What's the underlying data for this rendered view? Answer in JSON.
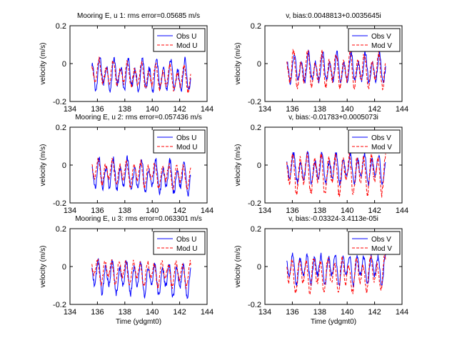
{
  "figure": {
    "background": "#ffffff"
  },
  "chart_data": [
    {
      "type": "line",
      "title": "Mooring E, u 1: rms error=0.05685 m/s",
      "xlabel": "",
      "ylabel": "velocity (m/s)",
      "xlim": [
        134,
        144
      ],
      "ylim": [
        -0.2,
        0.2
      ],
      "xticks": [
        "134",
        "136",
        "138",
        "140",
        "142",
        "144"
      ],
      "yticks": [
        "-0.2",
        "0",
        "0.2"
      ],
      "grid": false,
      "legend_position": "top-right",
      "x_start": 135.6,
      "x_end": 142.8,
      "series": [
        {
          "name": "Obs U",
          "color": "#0000ff",
          "dash": "solid",
          "mean": -0.055,
          "amplitude": 0.065,
          "trend": -0.02
        },
        {
          "name": "Mod U",
          "color": "#ff0000",
          "dash": "dashed",
          "mean": -0.045,
          "amplitude": 0.05,
          "trend": -0.04
        }
      ]
    },
    {
      "type": "line",
      "title": "v, bias:0.0048813+0.0035645i",
      "xlabel": "",
      "ylabel": "velocity (m/s)",
      "xlim": [
        134,
        144
      ],
      "ylim": [
        -0.2,
        0.2
      ],
      "xticks": [
        "134",
        "136",
        "138",
        "140",
        "142",
        "144"
      ],
      "yticks": [
        "-0.2",
        "0",
        "0.2"
      ],
      "grid": false,
      "legend_position": "top-right",
      "x_start": 135.6,
      "x_end": 142.8,
      "series": [
        {
          "name": "Obs V",
          "color": "#0000ff",
          "dash": "solid",
          "mean": -0.03,
          "amplitude": 0.06,
          "trend": 0
        },
        {
          "name": "Mod V",
          "color": "#ff0000",
          "dash": "dashed",
          "mean": -0.035,
          "amplitude": 0.07,
          "trend": 0
        }
      ]
    },
    {
      "type": "line",
      "title": "Mooring E, u 2: rms error=0.057436 m/s",
      "xlabel": "",
      "ylabel": "velocity (m/s)",
      "xlim": [
        134,
        144
      ],
      "ylim": [
        -0.2,
        0.2
      ],
      "xticks": [
        "134",
        "136",
        "138",
        "140",
        "142",
        "144"
      ],
      "yticks": [
        "-0.2",
        "0",
        "0.2"
      ],
      "grid": false,
      "legend_position": "top-right",
      "x_start": 135.6,
      "x_end": 142.8,
      "series": [
        {
          "name": "Obs U",
          "color": "#0000ff",
          "dash": "solid",
          "mean": -0.05,
          "amplitude": 0.065,
          "trend": -0.02
        },
        {
          "name": "Mod U",
          "color": "#ff0000",
          "dash": "dashed",
          "mean": -0.03,
          "amplitude": 0.05,
          "trend": -0.03
        }
      ]
    },
    {
      "type": "line",
      "title": "v, bias:-0.01783+0.0005073i",
      "xlabel": "",
      "ylabel": "velocity (m/s)",
      "xlim": [
        134,
        144
      ],
      "ylim": [
        -0.2,
        0.2
      ],
      "xticks": [
        "134",
        "136",
        "138",
        "140",
        "142",
        "144"
      ],
      "yticks": [
        "-0.2",
        "0",
        "0.2"
      ],
      "grid": false,
      "legend_position": "top-right",
      "x_start": 135.6,
      "x_end": 142.8,
      "series": [
        {
          "name": "Obs V",
          "color": "#0000ff",
          "dash": "solid",
          "mean": -0.02,
          "amplitude": 0.06,
          "trend": 0
        },
        {
          "name": "Mod V",
          "color": "#ff0000",
          "dash": "dashed",
          "mean": -0.04,
          "amplitude": 0.08,
          "trend": 0
        }
      ]
    },
    {
      "type": "line",
      "title": "Mooring E, u 3: rms error=0.063301 m/s",
      "xlabel": "Time (ydgmt0)",
      "ylabel": "velocity (m/s)",
      "xlim": [
        134,
        144
      ],
      "ylim": [
        -0.2,
        0.2
      ],
      "xticks": [
        "134",
        "136",
        "138",
        "140",
        "142",
        "144"
      ],
      "yticks": [
        "-0.2",
        "0",
        "0.2"
      ],
      "grid": false,
      "legend_position": "top-right",
      "x_start": 135.6,
      "x_end": 142.8,
      "series": [
        {
          "name": "Obs U",
          "color": "#0000ff",
          "dash": "solid",
          "mean": -0.05,
          "amplitude": 0.065,
          "trend": -0.02
        },
        {
          "name": "Mod U",
          "color": "#ff0000",
          "dash": "dashed",
          "mean": -0.02,
          "amplitude": 0.05,
          "trend": -0.02
        }
      ]
    },
    {
      "type": "line",
      "title": "v, bias:-0.03324-3.4113e-05i",
      "xlabel": "Time (ydgmt0)",
      "ylabel": "velocity (m/s)",
      "xlim": [
        134,
        144
      ],
      "ylim": [
        -0.2,
        0.2
      ],
      "xticks": [
        "134",
        "136",
        "138",
        "140",
        "142",
        "144"
      ],
      "yticks": [
        "-0.2",
        "0",
        "0.2"
      ],
      "grid": false,
      "legend_position": "top-right",
      "x_start": 135.6,
      "x_end": 142.8,
      "series": [
        {
          "name": "Obs V",
          "color": "#0000ff",
          "dash": "solid",
          "mean": -0.01,
          "amplitude": 0.06,
          "trend": 0
        },
        {
          "name": "Mod V",
          "color": "#ff0000",
          "dash": "dashed",
          "mean": -0.04,
          "amplitude": 0.07,
          "trend": 0
        }
      ]
    }
  ]
}
